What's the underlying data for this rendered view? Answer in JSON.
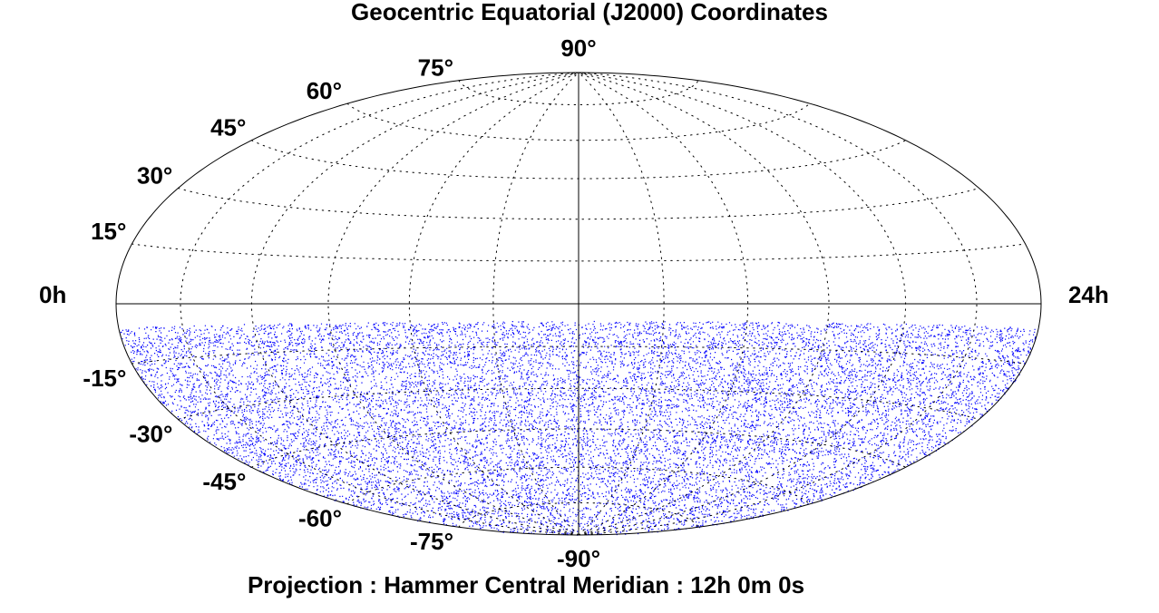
{
  "chart_data": {
    "type": "hammer",
    "title": "Geocentric Equatorial (J2000)  Coordinates",
    "subtitle": "Projection : Hammer   Central Meridian : 12h 0m 0s",
    "xlim": [
      0,
      24
    ],
    "xticks": [
      {
        "value": 0,
        "label": "0h"
      },
      {
        "value": 2,
        "label": null
      },
      {
        "value": 4,
        "label": null
      },
      {
        "value": 6,
        "label": null
      },
      {
        "value": 8,
        "label": null
      },
      {
        "value": 10,
        "label": null
      },
      {
        "value": 12,
        "label": null
      },
      {
        "value": 14,
        "label": null
      },
      {
        "value": 16,
        "label": null
      },
      {
        "value": 18,
        "label": null
      },
      {
        "value": 20,
        "label": null
      },
      {
        "value": 22,
        "label": null
      },
      {
        "value": 24,
        "label": "24h"
      }
    ],
    "ylim": [
      -90,
      90
    ],
    "yticks": [
      {
        "value": 90,
        "label": "90°"
      },
      {
        "value": 75,
        "label": "75°"
      },
      {
        "value": 60,
        "label": "60°"
      },
      {
        "value": 45,
        "label": "45°"
      },
      {
        "value": 30,
        "label": "30°"
      },
      {
        "value": 15,
        "label": "15°"
      },
      {
        "value": 0,
        "label": null
      },
      {
        "value": -15,
        "label": "-15°"
      },
      {
        "value": -30,
        "label": "-30°"
      },
      {
        "value": -45,
        "label": "-45°"
      },
      {
        "value": -60,
        "label": "-60°"
      },
      {
        "value": -75,
        "label": "-75°"
      },
      {
        "value": -90,
        "label": "-90°"
      }
    ],
    "central_meridian": 12,
    "points": {
      "color": "#0000ff",
      "dec_range": [
        -90,
        -6
      ]
    }
  }
}
